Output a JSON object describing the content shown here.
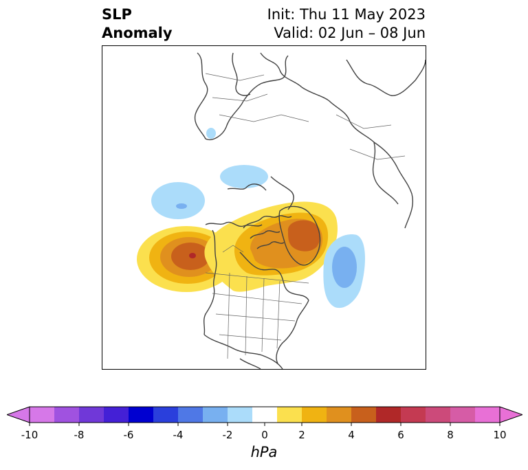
{
  "title": {
    "left_line1": "SLP",
    "left_line2": "Anomaly",
    "right_line1": "Init: Thu 11 May 2023",
    "right_line2": "Valid: 02 Jun – 08 Jun"
  },
  "map": {
    "projection": "polar stereographic, North America / Arctic",
    "features": [
      {
        "name": "northeast-pacific-high",
        "sign": "positive",
        "peak_hpa": 6
      },
      {
        "name": "canadian-arctic-greenland-high",
        "sign": "positive",
        "peak_hpa": 5
      },
      {
        "name": "north-atlantic-low",
        "sign": "negative",
        "peak_hpa": -3
      },
      {
        "name": "gulf-of-alaska-low",
        "sign": "negative",
        "peak_hpa": -2
      },
      {
        "name": "siberia-low",
        "sign": "negative",
        "peak_hpa": -2
      },
      {
        "name": "northwest-russia-low",
        "sign": "negative",
        "peak_hpa": -1
      }
    ]
  },
  "colorbar": {
    "ticks": [
      "-10",
      "-8",
      "-6",
      "-4",
      "-2",
      "0",
      "2",
      "4",
      "6",
      "8",
      "10"
    ],
    "unit": "hPa",
    "levels": [
      -10,
      -9,
      -8,
      -7,
      -6,
      -5,
      -4,
      -3,
      -2,
      -1,
      1,
      2,
      3,
      4,
      5,
      6,
      7,
      8,
      9,
      10
    ],
    "colors": [
      "#d678e8",
      "#a052e0",
      "#7038d8",
      "#4420d6",
      "#0000d0",
      "#2a3fdc",
      "#4f78e6",
      "#78b0f0",
      "#abdcfa",
      "#ffffff",
      "#fbe04e",
      "#f0b312",
      "#e0901e",
      "#c8601c",
      "#b02828",
      "#c43a52",
      "#cc4a7a",
      "#d65ca6",
      "#e870d6"
    ],
    "extend_low_color": "#d678e8",
    "extend_high_color": "#e870d6"
  }
}
